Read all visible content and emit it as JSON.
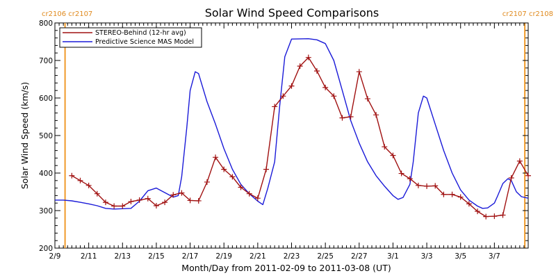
{
  "colors": {
    "stereo": "#a01010",
    "model": "#1a1ad8",
    "carrington": "#f09a2a",
    "carrington_text": "#e08a1e"
  },
  "carrington": {
    "left_label": "cr2106 cr2107",
    "right_label": "cr2107 cr2108",
    "lines_day": [
      0.6,
      27.8
    ]
  },
  "chart_data": {
    "type": "line",
    "title": "Solar Wind Speed Comparisons",
    "xlabel": "Month/Day from 2011-02-09 to 2011-03-08 (UT)",
    "ylabel": "Solar Wind Speed (km/s)",
    "xlim": [
      0,
      28
    ],
    "ylim": [
      200,
      800
    ],
    "x_unit": "days from 2011-02-09",
    "yticks": [
      200,
      300,
      400,
      500,
      600,
      700,
      800
    ],
    "xticks": [
      {
        "day": 0,
        "label": "2/9"
      },
      {
        "day": 2,
        "label": "2/11"
      },
      {
        "day": 4,
        "label": "2/13"
      },
      {
        "day": 6,
        "label": "2/15"
      },
      {
        "day": 8,
        "label": "2/17"
      },
      {
        "day": 10,
        "label": "2/19"
      },
      {
        "day": 12,
        "label": "2/21"
      },
      {
        "day": 14,
        "label": "2/23"
      },
      {
        "day": 16,
        "label": "2/25"
      },
      {
        "day": 18,
        "label": "2/27"
      },
      {
        "day": 20,
        "label": "3/1"
      },
      {
        "day": 22,
        "label": "3/3"
      },
      {
        "day": 24,
        "label": "3/5"
      },
      {
        "day": 26,
        "label": "3/7"
      }
    ],
    "legend_position": "top-left",
    "series": [
      {
        "name": "STEREO-Behind (12-hr avg)",
        "markers": true,
        "x": [
          1.0,
          1.5,
          2.0,
          2.5,
          3.0,
          3.5,
          4.0,
          4.5,
          5.0,
          5.5,
          6.0,
          6.5,
          7.0,
          7.5,
          8.0,
          8.5,
          9.0,
          9.5,
          10.0,
          10.5,
          11.0,
          11.5,
          12.0,
          12.5,
          13.0,
          13.5,
          14.0,
          14.5,
          15.0,
          15.5,
          16.0,
          16.5,
          17.0,
          17.5,
          18.0,
          18.5,
          19.0,
          19.5,
          20.0,
          20.5,
          21.0,
          21.5,
          22.0,
          22.5,
          23.0,
          23.5,
          24.0,
          24.5,
          25.0,
          25.5,
          26.0,
          26.5,
          27.0,
          27.5,
          28.0
        ],
        "y": [
          393,
          380,
          367,
          345,
          322,
          312,
          312,
          324,
          328,
          332,
          313,
          322,
          342,
          347,
          327,
          326,
          376,
          442,
          410,
          390,
          362,
          345,
          333,
          410,
          577,
          605,
          632,
          685,
          708,
          672,
          628,
          605,
          547,
          550,
          670,
          598,
          555,
          470,
          447,
          399,
          385,
          367,
          365,
          366,
          343,
          343,
          336,
          318,
          298,
          284,
          285,
          288,
          387,
          432,
          393
        ]
      },
      {
        "name": "Predictive Science MAS Model",
        "markers": false,
        "x": [
          0,
          0.5,
          1.0,
          1.5,
          2.0,
          2.5,
          3.0,
          3.5,
          4.0,
          4.5,
          5.0,
          5.5,
          6.0,
          6.5,
          7.0,
          7.3,
          7.5,
          7.8,
          8.0,
          8.3,
          8.5,
          9.0,
          9.5,
          10.0,
          10.5,
          11.0,
          11.5,
          12.0,
          12.3,
          12.6,
          13.0,
          13.3,
          13.6,
          14.0,
          15.0,
          15.5,
          16.0,
          16.5,
          17.0,
          17.5,
          18.0,
          18.5,
          19.0,
          19.5,
          20.0,
          20.3,
          20.6,
          21.0,
          21.2,
          21.5,
          21.8,
          22.0,
          22.5,
          23.0,
          23.5,
          24.0,
          24.5,
          25.0,
          25.3,
          25.6,
          26.0,
          26.2,
          26.5,
          26.8,
          27.0,
          27.3,
          27.6,
          28.0
        ],
        "y": [
          328,
          328,
          326,
          322,
          318,
          313,
          306,
          304,
          305,
          306,
          325,
          353,
          360,
          348,
          336,
          340,
          390,
          520,
          620,
          670,
          665,
          590,
          530,
          465,
          410,
          370,
          345,
          325,
          316,
          360,
          430,
          580,
          710,
          757,
          758,
          755,
          745,
          700,
          620,
          540,
          480,
          430,
          393,
          365,
          340,
          330,
          335,
          370,
          430,
          560,
          605,
          600,
          530,
          460,
          400,
          355,
          328,
          312,
          306,
          307,
          320,
          340,
          372,
          385,
          380,
          350,
          337,
          333
        ]
      }
    ]
  }
}
